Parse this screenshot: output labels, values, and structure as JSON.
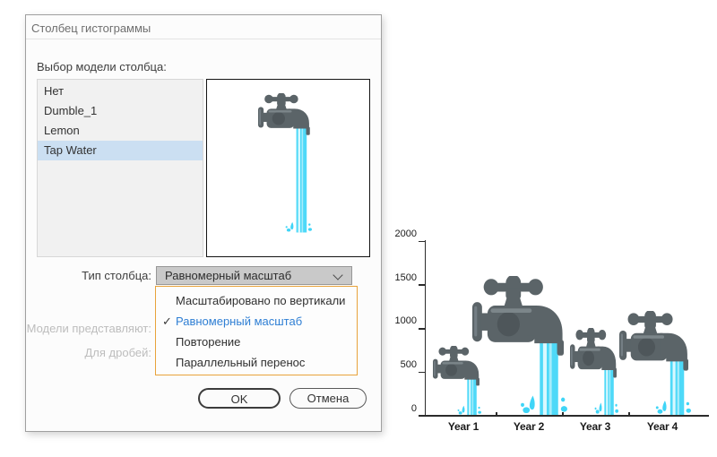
{
  "dialog": {
    "title": "Столбец гистограммы",
    "model_list": {
      "label": "Выбор модели столбца:",
      "items": [
        {
          "label": "Нет",
          "selected": false
        },
        {
          "label": "Dumble_1",
          "selected": false
        },
        {
          "label": "Lemon",
          "selected": false
        },
        {
          "label": "Tap Water",
          "selected": true
        }
      ]
    },
    "column_type": {
      "label": "Тип столбца:",
      "value": "Равномерный масштаб",
      "options": [
        "Масштабировано по вертикали",
        "Равномерный масштаб",
        "Повторение",
        "Параллельный перенос"
      ],
      "selected_index": 1,
      "checkmark": "✓"
    },
    "disabled_fields": {
      "models_represent_label": "Модели представляют:",
      "for_fractions_label": "Для дробей:"
    },
    "buttons": {
      "ok": "OK",
      "cancel": "Отмена"
    }
  },
  "chart_data": {
    "type": "bar",
    "title": "",
    "xlabel": "",
    "ylabel": "",
    "categories": [
      "Year 1",
      "Year 2",
      "Year 3",
      "Year 4"
    ],
    "values": [
      800,
      1600,
      1000,
      1200
    ],
    "ylim": [
      0,
      2000
    ],
    "yticks": [
      0,
      500,
      1000,
      1500,
      2000
    ],
    "ytick_labels_top_down": [
      "2000",
      "1500",
      "1000",
      "500",
      "0"
    ],
    "grid": false,
    "legend": false,
    "bar_design": "tap-water-faucet-pictogram-uniformly-scaled"
  },
  "colors": {
    "selection_blue": "#cbdff2",
    "menu_border_orange": "#e8a33b",
    "selected_option_text": "#2f7fd4",
    "tap_gray": "#5b6468",
    "water_cyan": "#4ed9f8",
    "axis_black": "#2b2b2b"
  }
}
